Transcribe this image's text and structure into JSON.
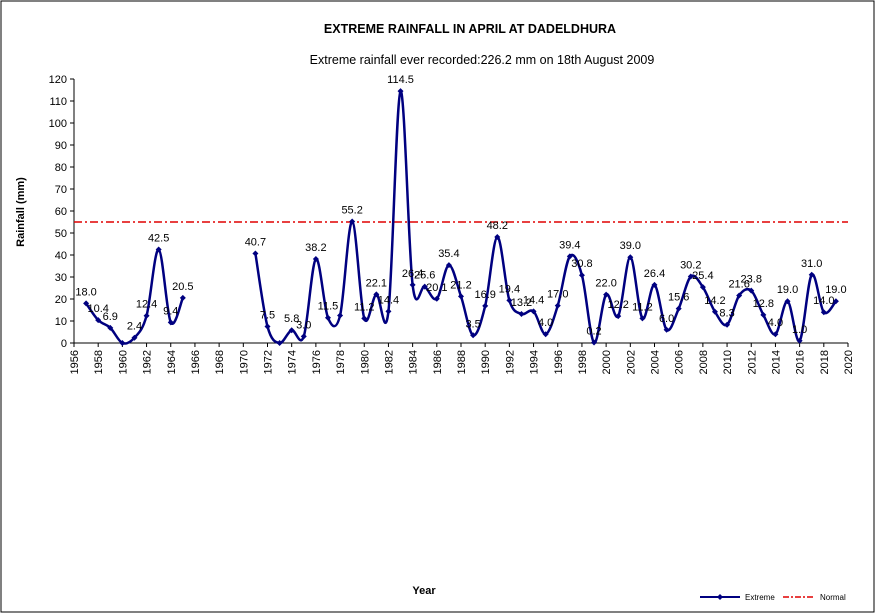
{
  "chart_data": {
    "type": "line",
    "title": "EXTREME  RAINFALL  IN APRIL AT DADELDHURA",
    "subtitle": "Extreme rainfall ever recorded:226.2 mm on 18th August 2009",
    "x_label": "Year",
    "y_label": "Rainfall (mm)",
    "x": [
      1957,
      1958,
      1959,
      1960,
      1961,
      1962,
      1963,
      1964,
      1965,
      1966,
      1967,
      1968,
      1969,
      1970,
      1971,
      1972,
      1973,
      1974,
      1975,
      1976,
      1977,
      1978,
      1979,
      1980,
      1981,
      1982,
      1983,
      1984,
      1985,
      1986,
      1987,
      1988,
      1989,
      1990,
      1991,
      1992,
      1993,
      1994,
      1995,
      1996,
      1997,
      1998,
      1999,
      2000,
      2001,
      2002,
      2003,
      2004,
      2005,
      2006,
      2007,
      2008,
      2009,
      2010,
      2011,
      2012,
      2013,
      2014,
      2015,
      2016,
      2017,
      2018,
      2019
    ],
    "series": [
      {
        "name": "Extreme",
        "color": "#000080",
        "values": [
          18.0,
          10.4,
          6.9,
          0.0,
          2.4,
          12.4,
          42.5,
          9.4,
          20.5,
          null,
          null,
          null,
          null,
          null,
          40.7,
          7.5,
          0.0,
          5.8,
          3.0,
          38.2,
          11.5,
          12.5,
          55.2,
          11.2,
          22.1,
          14.4,
          114.5,
          26.4,
          25.6,
          20.1,
          35.4,
          21.2,
          3.5,
          16.9,
          48.2,
          19.4,
          13.2,
          14.4,
          4.0,
          17.0,
          39.4,
          30.8,
          0.2,
          22.0,
          12.2,
          39.0,
          11.2,
          26.4,
          6.0,
          15.6,
          30.2,
          25.4,
          14.2,
          8.3,
          21.6,
          23.8,
          12.8,
          4.0,
          19.0,
          1.0,
          31.0,
          14.0,
          19.0
        ],
        "value_labels": [
          "18.0",
          "10.4",
          "6.9",
          null,
          "2.4",
          "12.4",
          "42.5",
          "9.4",
          "20.5",
          null,
          null,
          null,
          null,
          null,
          "40.7",
          "7.5",
          null,
          "5.8",
          "3.0",
          "38.2",
          "11.5",
          null,
          "55.2",
          "11.2",
          "22.1",
          "14.4",
          "114.5",
          "26.4",
          "25.6",
          "20.1",
          "35.4",
          "21.2",
          "3.5",
          "16.9",
          "48.2",
          "19.4",
          "13.2",
          "14.4",
          "4.0",
          "17.0",
          "39.4",
          "30.8",
          "0.2",
          "22.0",
          "12.2",
          "39.0",
          "11.2",
          "26.4",
          "6.0",
          "15.6",
          "30.2",
          "25.4",
          "14.2",
          "8.3",
          "21.6",
          "23.8",
          "12.8",
          "4.0",
          "19.0",
          "1.0",
          "31.0",
          "14.0",
          "19.0"
        ]
      }
    ],
    "normal": {
      "name": "Normal",
      "value": 55,
      "color": "#e00000"
    },
    "xlim": [
      1956,
      2020
    ],
    "xticks": [
      1956,
      1958,
      1960,
      1962,
      1964,
      1966,
      1968,
      1970,
      1972,
      1974,
      1976,
      1978,
      1980,
      1982,
      1984,
      1986,
      1988,
      1990,
      1992,
      1994,
      1996,
      1998,
      2000,
      2002,
      2004,
      2006,
      2008,
      2010,
      2012,
      2014,
      2016,
      2018,
      2020
    ],
    "ylim": [
      0,
      120
    ],
    "yticks": [
      0,
      10,
      20,
      30,
      40,
      50,
      60,
      70,
      80,
      90,
      100,
      110,
      120
    ]
  }
}
